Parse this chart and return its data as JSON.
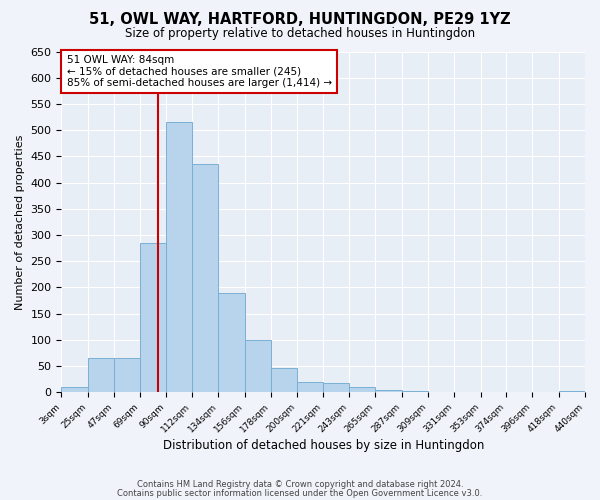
{
  "title": "51, OWL WAY, HARTFORD, HUNTINGDON, PE29 1YZ",
  "subtitle": "Size of property relative to detached houses in Huntingdon",
  "xlabel": "Distribution of detached houses by size in Huntingdon",
  "ylabel": "Number of detached properties",
  "bar_color": "#b8d4ec",
  "bar_edge_color": "#7aafd4",
  "background_color": "#e8eef6",
  "grid_color": "#ffffff",
  "fig_background": "#f0f4fa",
  "bin_edges": [
    3,
    25,
    47,
    69,
    90,
    112,
    134,
    156,
    178,
    200,
    221,
    243,
    265,
    287,
    309,
    331,
    353,
    374,
    396,
    418,
    440
  ],
  "bar_heights": [
    10,
    65,
    65,
    285,
    515,
    435,
    190,
    100,
    46,
    20,
    18,
    10,
    5,
    2,
    0,
    0,
    0,
    0,
    0,
    2
  ],
  "tick_labels": [
    "3sqm",
    "25sqm",
    "47sqm",
    "69sqm",
    "90sqm",
    "112sqm",
    "134sqm",
    "156sqm",
    "178sqm",
    "200sqm",
    "221sqm",
    "243sqm",
    "265sqm",
    "287sqm",
    "309sqm",
    "331sqm",
    "353sqm",
    "374sqm",
    "396sqm",
    "418sqm",
    "440sqm"
  ],
  "vline_x": 84,
  "vline_color": "#cc0000",
  "ylim": [
    0,
    650
  ],
  "yticks": [
    0,
    50,
    100,
    150,
    200,
    250,
    300,
    350,
    400,
    450,
    500,
    550,
    600,
    650
  ],
  "annotation_title": "51 OWL WAY: 84sqm",
  "annotation_line1": "← 15% of detached houses are smaller (245)",
  "annotation_line2": "85% of semi-detached houses are larger (1,414) →",
  "annotation_box_color": "#ffffff",
  "annotation_box_edge": "#cc0000",
  "footnote1": "Contains HM Land Registry data © Crown copyright and database right 2024.",
  "footnote2": "Contains public sector information licensed under the Open Government Licence v3.0."
}
